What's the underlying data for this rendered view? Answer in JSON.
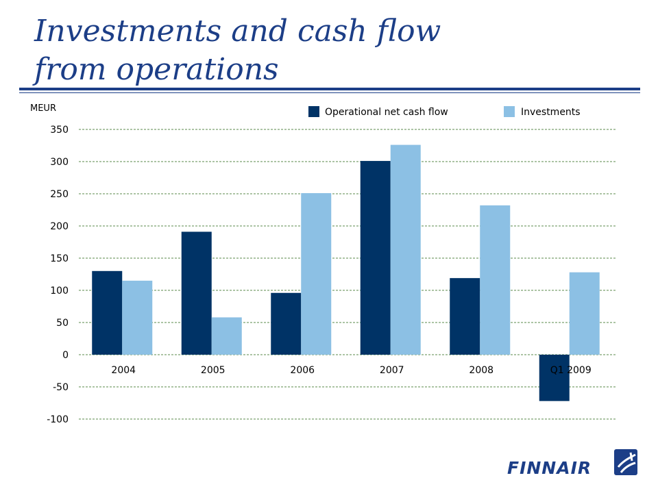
{
  "slide": {
    "title_line1": "Investments and cash flow",
    "title_line2": "from operations"
  },
  "colors": {
    "title": "#1c3e87",
    "operational": "#003366",
    "investments": "#8cc0e4",
    "grid": "#5a8a4a",
    "text": "#000000"
  },
  "chart_data": {
    "type": "bar",
    "ylabel": "MEUR",
    "categories": [
      "2004",
      "2005",
      "2006",
      "2007",
      "2008",
      "Q1 2009"
    ],
    "series": [
      {
        "name": "Operational net cash flow",
        "color": "#003366",
        "values": [
          130,
          191,
          96,
          301,
          119,
          -72
        ]
      },
      {
        "name": "Investments",
        "color": "#8cc0e4",
        "values": [
          115,
          58,
          251,
          326,
          232,
          128
        ]
      }
    ],
    "ylim": [
      -100,
      350
    ],
    "yticks": [
      350,
      300,
      250,
      200,
      150,
      100,
      50,
      0,
      -50,
      -100
    ],
    "grid": true,
    "grid_style": "dashed",
    "legend_position": "top-right"
  },
  "logo": {
    "text": "FINNAIR",
    "icon": "finnair-f-logo-icon"
  }
}
